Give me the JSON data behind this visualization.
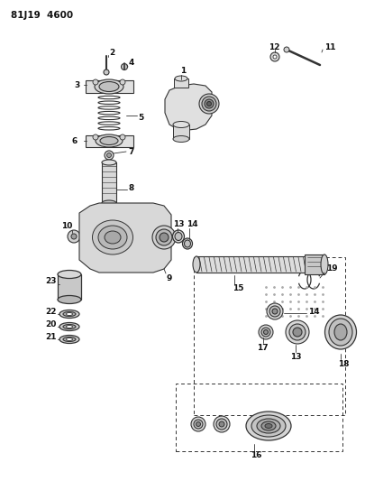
{
  "title": "81J19  4600",
  "bg_color": "#ffffff",
  "line_color": "#333333",
  "label_color": "#111111",
  "fig_width": 4.06,
  "fig_height": 5.33,
  "dpi": 100
}
